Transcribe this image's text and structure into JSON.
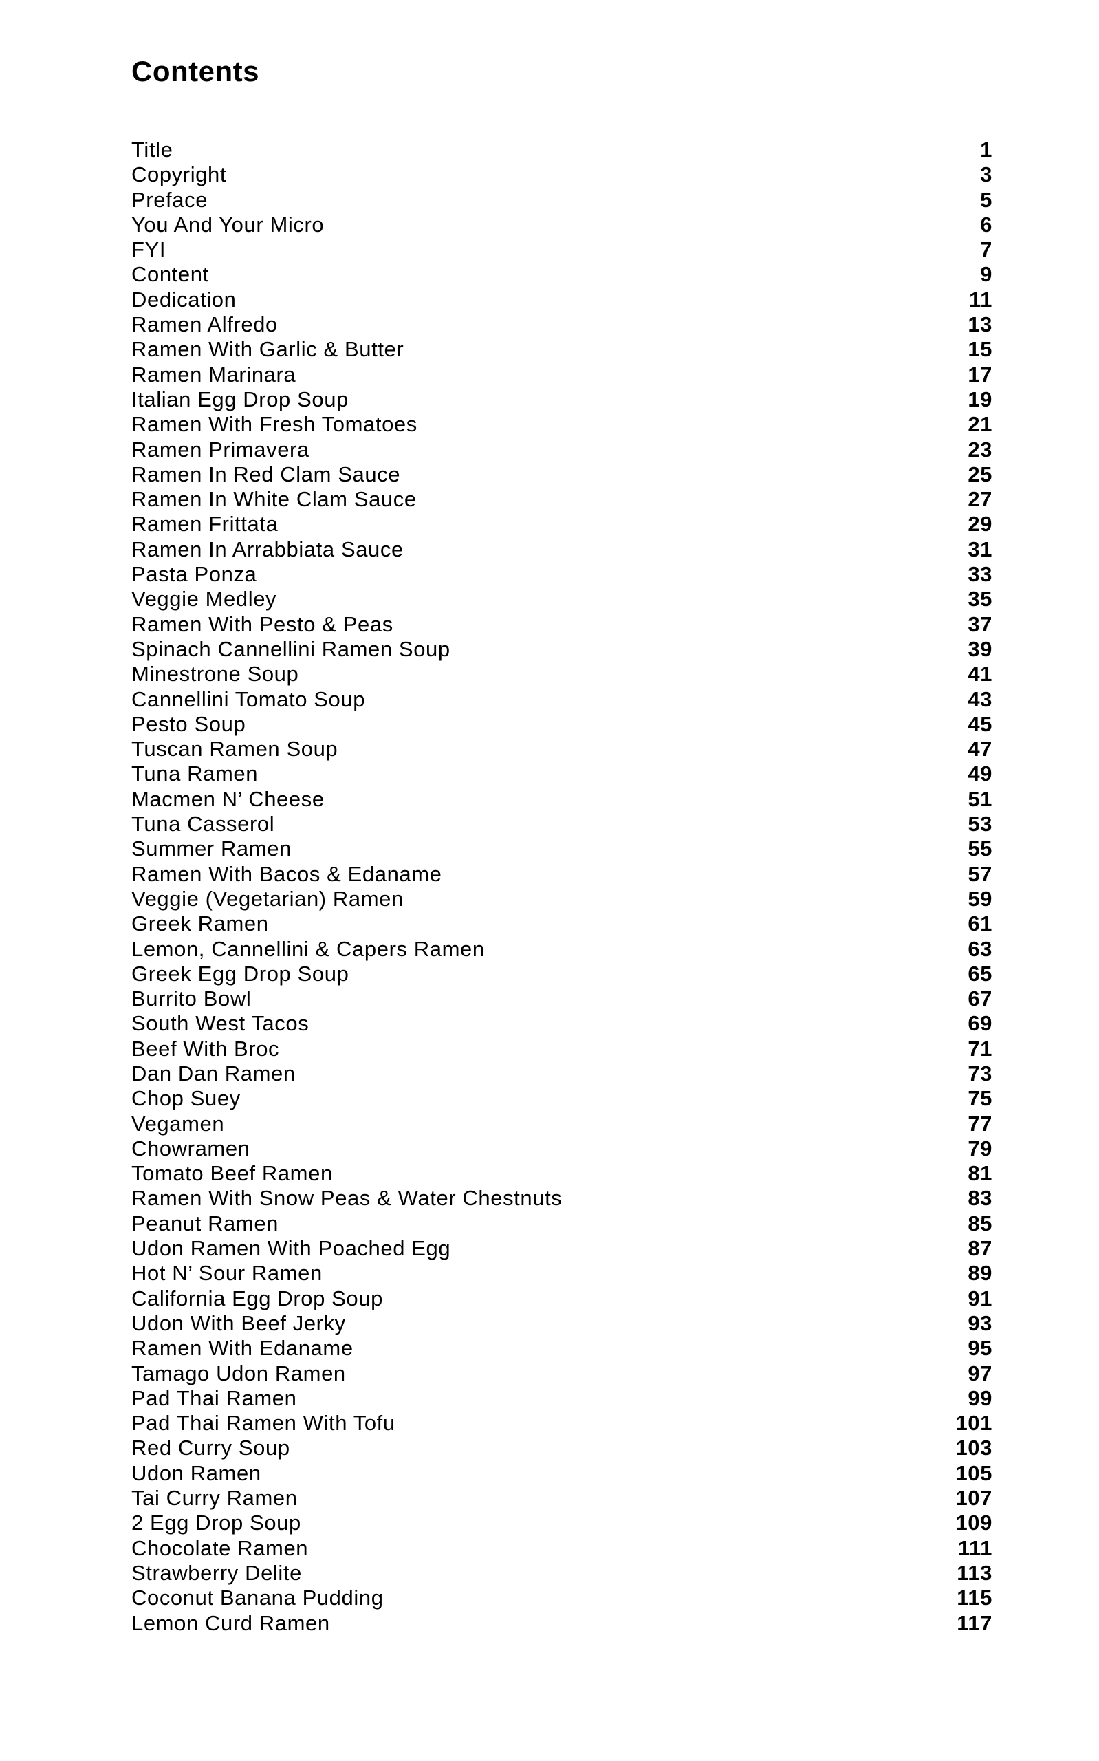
{
  "heading": "Contents",
  "entries": [
    {
      "title": "Title",
      "page": "1"
    },
    {
      "title": "Copyright",
      "page": "3"
    },
    {
      "title": "Preface",
      "page": "5"
    },
    {
      "title": "You And Your Micro",
      "page": "6"
    },
    {
      "title": "FYI",
      "page": "7"
    },
    {
      "title": "Content",
      "page": "9"
    },
    {
      "title": "Dedication",
      "page": "11"
    },
    {
      "title": "Ramen Alfredo",
      "page": "13"
    },
    {
      "title": "Ramen With Garlic & Butter",
      "page": "15"
    },
    {
      "title": "Ramen Marinara",
      "page": "17"
    },
    {
      "title": "Italian Egg Drop Soup",
      "page": "19"
    },
    {
      "title": "Ramen With Fresh Tomatoes",
      "page": "21"
    },
    {
      "title": "Ramen Primavera",
      "page": "23"
    },
    {
      "title": "Ramen In Red Clam Sauce",
      "page": "25"
    },
    {
      "title": "Ramen In White Clam Sauce",
      "page": "27"
    },
    {
      "title": "Ramen Frittata",
      "page": "29"
    },
    {
      "title": "Ramen In Arrabbiata Sauce",
      "page": "31"
    },
    {
      "title": "Pasta Ponza",
      "page": "33"
    },
    {
      "title": "Veggie Medley",
      "page": "35"
    },
    {
      "title": "Ramen With Pesto & Peas",
      "page": "37"
    },
    {
      "title": "Spinach Cannellini Ramen Soup",
      "page": "39"
    },
    {
      "title": "Minestrone Soup",
      "page": "41"
    },
    {
      "title": "Cannellini Tomato Soup",
      "page": "43"
    },
    {
      "title": "Pesto Soup",
      "page": "45"
    },
    {
      "title": "Tuscan Ramen Soup",
      "page": "47"
    },
    {
      "title": "Tuna Ramen",
      "page": "49"
    },
    {
      "title": "Macmen N’ Cheese",
      "page": "51"
    },
    {
      "title": "Tuna Casserol",
      "page": "53"
    },
    {
      "title": "Summer Ramen",
      "page": "55"
    },
    {
      "title": "Ramen With Bacos & Edaname",
      "page": "57"
    },
    {
      "title": "Veggie (Vegetarian) Ramen",
      "page": "59"
    },
    {
      "title": "Greek Ramen",
      "page": "61"
    },
    {
      "title": "Lemon, Cannellini & Capers Ramen",
      "page": "63"
    },
    {
      "title": "Greek Egg Drop Soup",
      "page": "65"
    },
    {
      "title": "Burrito Bowl",
      "page": "67"
    },
    {
      "title": "South West Tacos",
      "page": "69"
    },
    {
      "title": "Beef With Broc",
      "page": "71"
    },
    {
      "title": "Dan Dan Ramen",
      "page": "73"
    },
    {
      "title": "Chop Suey",
      "page": "75"
    },
    {
      "title": "Vegamen",
      "page": "77"
    },
    {
      "title": "Chowramen",
      "page": "79"
    },
    {
      "title": "Tomato Beef Ramen",
      "page": "81"
    },
    {
      "title": "Ramen With Snow Peas & Water Chestnuts",
      "page": "83"
    },
    {
      "title": "Peanut Ramen",
      "page": "85"
    },
    {
      "title": "Udon Ramen With Poached Egg",
      "page": "87"
    },
    {
      "title": "Hot N’ Sour Ramen",
      "page": "89"
    },
    {
      "title": "California Egg Drop Soup",
      "page": "91"
    },
    {
      "title": "Udon With Beef Jerky",
      "page": "93"
    },
    {
      "title": "Ramen With Edaname",
      "page": "95"
    },
    {
      "title": "Tamago Udon Ramen",
      "page": "97"
    },
    {
      "title": "Pad Thai Ramen",
      "page": "99"
    },
    {
      "title": "Pad Thai Ramen With Tofu",
      "page": "101"
    },
    {
      "title": "Red Curry Soup",
      "page": "103"
    },
    {
      "title": "Udon Ramen",
      "page": "105"
    },
    {
      "title": "Tai Curry Ramen",
      "page": "107"
    },
    {
      "title": "2 Egg Drop Soup",
      "page": "109"
    },
    {
      "title": "Chocolate Ramen",
      "page": "111"
    },
    {
      "title": "Strawberry Delite",
      "page": "113"
    },
    {
      "title": "Coconut Banana Pudding",
      "page": "115"
    },
    {
      "title": "Lemon Curd Ramen",
      "page": "117"
    }
  ]
}
